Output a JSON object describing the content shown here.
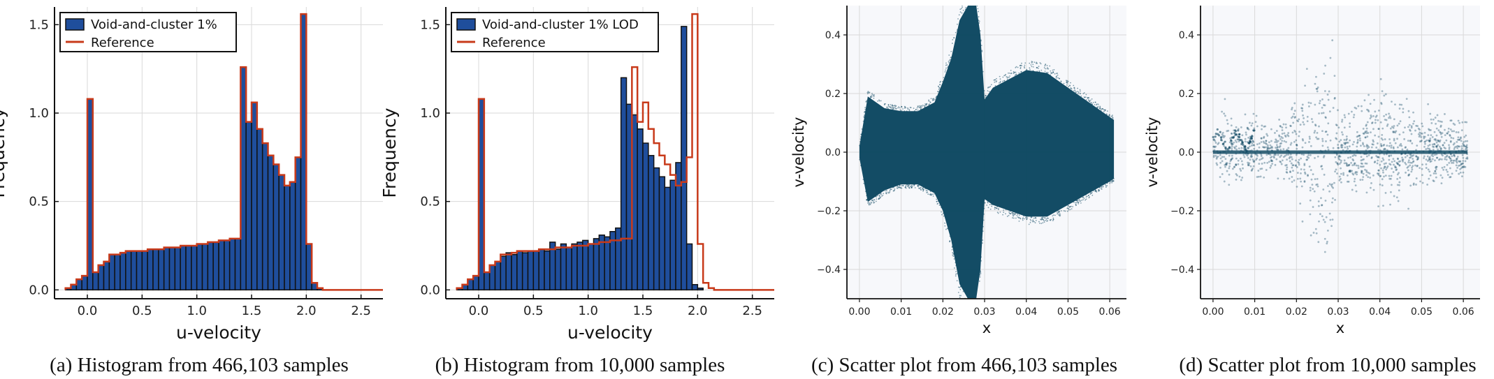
{
  "colors": {
    "bar_fill": "#1f4e9c",
    "bar_edge": "#111111",
    "reference": "#c83a1a",
    "scatter": "#0b4660",
    "grid": "#d9d9d9",
    "scatter_bg": "#f7f8fb"
  },
  "captions": {
    "a": "(a) Histogram from 466,103 samples",
    "b": "(b) Histogram from 10,000 samples",
    "c": "(c) Scatter plot from 466,103 samples",
    "d": "(d) Scatter plot from 10,000 samples"
  },
  "chart_data": [
    {
      "type": "bar",
      "xlabel": "u-velocity",
      "ylabel": "Frequency",
      "xlim": [
        -0.3,
        2.7
      ],
      "ylim": [
        -0.05,
        1.6
      ],
      "xticks": [
        "0.0",
        "0.5",
        "1.0",
        "1.5",
        "2.0",
        "2.5"
      ],
      "yticks": [
        "0.0",
        "0.5",
        "1.0",
        "1.5"
      ],
      "bin_start": -0.2,
      "bin_width": 0.05,
      "series": [
        {
          "name": "Void-and-cluster 1%",
          "values": [
            0.01,
            0.03,
            0.06,
            0.08,
            1.08,
            0.1,
            0.14,
            0.16,
            0.2,
            0.2,
            0.21,
            0.22,
            0.22,
            0.22,
            0.22,
            0.23,
            0.23,
            0.23,
            0.24,
            0.24,
            0.24,
            0.25,
            0.25,
            0.25,
            0.26,
            0.26,
            0.27,
            0.27,
            0.28,
            0.28,
            0.29,
            0.29,
            1.26,
            0.95,
            1.06,
            0.91,
            0.83,
            0.76,
            0.71,
            0.65,
            0.59,
            0.61,
            0.75,
            1.56,
            0.26,
            0.04,
            0.01,
            0.0,
            0.0,
            0.0,
            0.0,
            0.0,
            0.0,
            0.0,
            0.0,
            0.0,
            0.0,
            0.0
          ]
        },
        {
          "name": "Reference",
          "values": [
            0.01,
            0.03,
            0.06,
            0.08,
            1.08,
            0.1,
            0.14,
            0.16,
            0.2,
            0.2,
            0.21,
            0.22,
            0.22,
            0.22,
            0.22,
            0.23,
            0.23,
            0.23,
            0.24,
            0.24,
            0.24,
            0.25,
            0.25,
            0.25,
            0.26,
            0.26,
            0.27,
            0.27,
            0.28,
            0.28,
            0.29,
            0.29,
            1.26,
            0.95,
            1.06,
            0.91,
            0.83,
            0.76,
            0.71,
            0.65,
            0.59,
            0.61,
            0.75,
            1.56,
            0.26,
            0.04,
            0.01,
            0.0,
            0.0,
            0.0,
            0.0,
            0.0,
            0.0,
            0.0,
            0.0,
            0.0,
            0.0,
            0.0
          ]
        }
      ],
      "legend": "top-left",
      "grid": true
    },
    {
      "type": "bar",
      "xlabel": "u-velocity",
      "ylabel": "Frequency",
      "xlim": [
        -0.3,
        2.7
      ],
      "ylim": [
        -0.05,
        1.6
      ],
      "xticks": [
        "0.0",
        "0.5",
        "1.0",
        "1.5",
        "2.0",
        "2.5"
      ],
      "yticks": [
        "0.0",
        "0.5",
        "1.0",
        "1.5"
      ],
      "bin_start": -0.2,
      "bin_width": 0.05,
      "series": [
        {
          "name": "Void-and-cluster 1% LOD",
          "values": [
            0.01,
            0.03,
            0.06,
            0.08,
            1.08,
            0.1,
            0.14,
            0.16,
            0.19,
            0.21,
            0.2,
            0.22,
            0.21,
            0.22,
            0.22,
            0.23,
            0.22,
            0.27,
            0.23,
            0.26,
            0.24,
            0.26,
            0.27,
            0.28,
            0.26,
            0.29,
            0.31,
            0.3,
            0.33,
            0.35,
            1.2,
            1.05,
            0.99,
            0.91,
            0.83,
            0.76,
            0.69,
            0.64,
            0.58,
            0.62,
            0.72,
            1.49,
            0.26,
            0.03,
            0.01,
            0.0,
            0.0,
            0.0,
            0.0,
            0.0,
            0.0,
            0.0,
            0.0,
            0.0,
            0.0,
            0.0,
            0.0,
            0.0
          ]
        },
        {
          "name": "Reference",
          "values": [
            0.01,
            0.03,
            0.06,
            0.08,
            1.08,
            0.1,
            0.14,
            0.16,
            0.2,
            0.2,
            0.21,
            0.22,
            0.22,
            0.22,
            0.22,
            0.23,
            0.23,
            0.23,
            0.24,
            0.24,
            0.24,
            0.25,
            0.25,
            0.25,
            0.26,
            0.26,
            0.27,
            0.27,
            0.28,
            0.28,
            0.29,
            0.29,
            1.26,
            0.95,
            1.06,
            0.91,
            0.83,
            0.76,
            0.71,
            0.65,
            0.59,
            0.61,
            0.75,
            1.56,
            0.26,
            0.04,
            0.01,
            0.0,
            0.0,
            0.0,
            0.0,
            0.0,
            0.0,
            0.0,
            0.0,
            0.0,
            0.0,
            0.0
          ]
        }
      ],
      "legend": "top-left",
      "grid": true
    },
    {
      "type": "scatter",
      "xlabel": "x",
      "ylabel": "v-velocity",
      "xlim": [
        -0.003,
        0.064
      ],
      "ylim": [
        -0.5,
        0.5
      ],
      "xticks": [
        "0.00",
        "0.01",
        "0.02",
        "0.03",
        "0.04",
        "0.05",
        "0.06"
      ],
      "yticks": [
        "−0.4",
        "−0.2",
        "0.0",
        "0.2",
        "0.4"
      ],
      "samples": 466103,
      "envelope": {
        "x": [
          0.0,
          0.002,
          0.004,
          0.006,
          0.01,
          0.014,
          0.018,
          0.02,
          0.022,
          0.024,
          0.026,
          0.028,
          0.029,
          0.03,
          0.032,
          0.036,
          0.04,
          0.045,
          0.05,
          0.055,
          0.06,
          0.061
        ],
        "top": [
          0.02,
          0.19,
          0.17,
          0.15,
          0.14,
          0.14,
          0.17,
          0.24,
          0.32,
          0.45,
          0.5,
          0.5,
          0.4,
          0.18,
          0.22,
          0.25,
          0.28,
          0.27,
          0.22,
          0.17,
          0.12,
          0.11
        ],
        "bot": [
          -0.02,
          -0.17,
          -0.15,
          -0.13,
          -0.11,
          -0.11,
          -0.14,
          -0.2,
          -0.3,
          -0.45,
          -0.5,
          -0.5,
          -0.4,
          -0.16,
          -0.18,
          -0.2,
          -0.22,
          -0.22,
          -0.18,
          -0.14,
          -0.1,
          -0.09
        ]
      },
      "grid": true
    },
    {
      "type": "scatter",
      "xlabel": "x",
      "ylabel": "v-velocity",
      "xlim": [
        -0.003,
        0.064
      ],
      "ylim": [
        -0.5,
        0.5
      ],
      "xticks": [
        "0.00",
        "0.01",
        "0.02",
        "0.03",
        "0.04",
        "0.05",
        "0.06"
      ],
      "yticks": [
        "−0.4",
        "−0.2",
        "0.0",
        "0.2",
        "0.4"
      ],
      "samples": 10000,
      "envelope": {
        "x": [
          0.0,
          0.002,
          0.004,
          0.006,
          0.01,
          0.014,
          0.018,
          0.02,
          0.022,
          0.024,
          0.026,
          0.028,
          0.029,
          0.03,
          0.032,
          0.036,
          0.04,
          0.045,
          0.05,
          0.055,
          0.06,
          0.061
        ],
        "top": [
          0.02,
          0.19,
          0.17,
          0.15,
          0.14,
          0.14,
          0.17,
          0.24,
          0.32,
          0.45,
          0.5,
          0.5,
          0.4,
          0.18,
          0.22,
          0.25,
          0.28,
          0.27,
          0.22,
          0.17,
          0.12,
          0.11
        ],
        "bot": [
          -0.02,
          -0.17,
          -0.15,
          -0.13,
          -0.11,
          -0.11,
          -0.14,
          -0.2,
          -0.3,
          -0.45,
          -0.5,
          -0.5,
          -0.4,
          -0.16,
          -0.18,
          -0.2,
          -0.22,
          -0.22,
          -0.18,
          -0.14,
          -0.1,
          -0.09
        ]
      },
      "grid": true
    }
  ]
}
